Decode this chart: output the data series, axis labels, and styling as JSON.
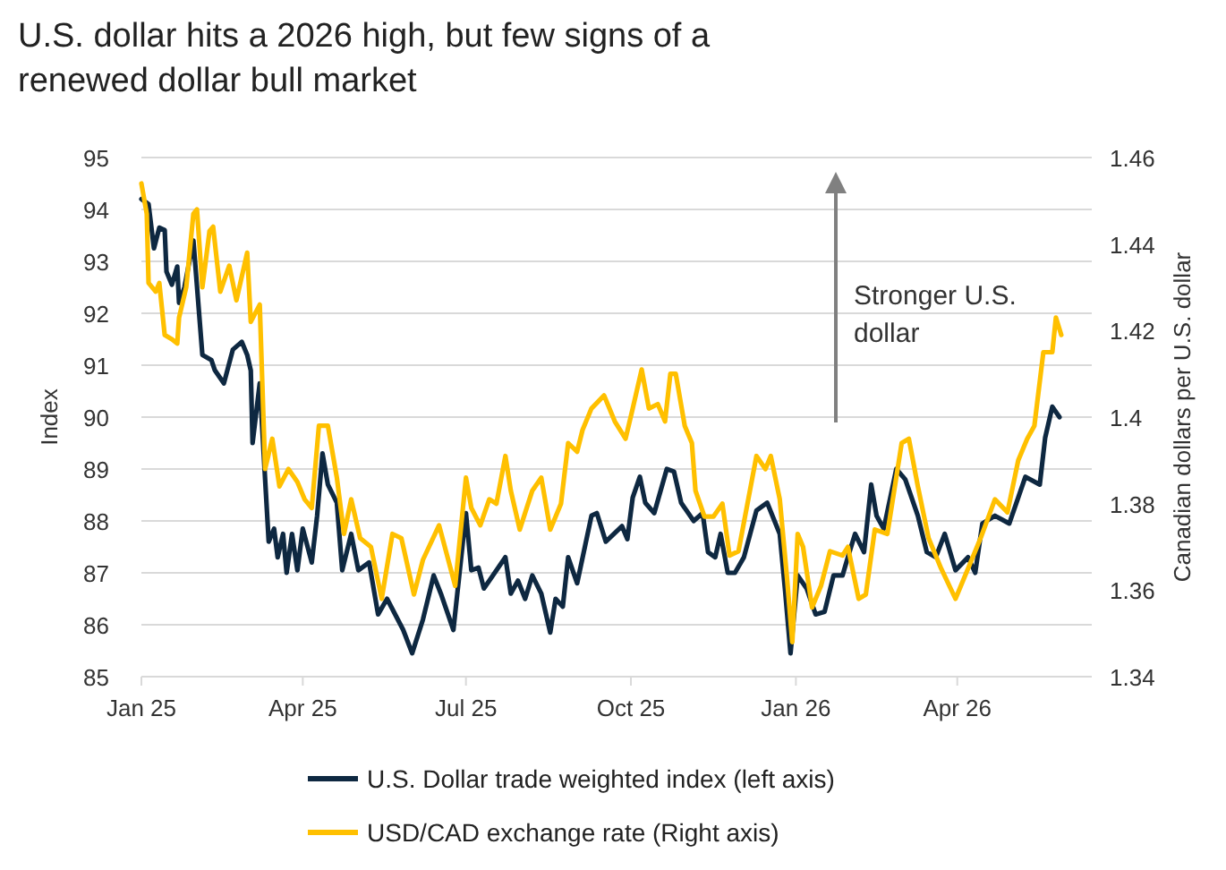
{
  "chart_data": {
    "type": "line",
    "title": "U.S. dollar hits a 2026 high, but few signs of a renewed dollar bull market",
    "ylabel": "Index",
    "y2label": "Canadian dollars per U.S. dollar",
    "annotations": [
      "Stronger U.S. dollar"
    ],
    "grid": "y",
    "legend": "bottom",
    "xlim": [
      "2025-01-01",
      "2026-06-15"
    ],
    "xticks": [
      {
        "value": "2025-01-01",
        "label": "Jan 25"
      },
      {
        "value": "2025-04-01",
        "label": "Apr 25"
      },
      {
        "value": "2025-07-01",
        "label": "Jul 25"
      },
      {
        "value": "2025-10-01",
        "label": "Oct 25"
      },
      {
        "value": "2026-01-01",
        "label": "Jan 26"
      },
      {
        "value": "2026-04-01",
        "label": "Apr 26"
      }
    ],
    "ylim": [
      85,
      95
    ],
    "yticks": [
      85,
      86,
      87,
      88,
      89,
      90,
      91,
      92,
      93,
      94,
      95
    ],
    "y2lim": [
      1.34,
      1.46
    ],
    "y2ticks": [
      1.34,
      1.36,
      1.38,
      1.4,
      1.42,
      1.44,
      1.46
    ],
    "series": [
      {
        "name": "U.S. Dollar trade weighted index (left axis)",
        "color": "#0e2841",
        "x": [
          "2025-01-01",
          "2025-01-05",
          "2025-01-08",
          "2025-01-11",
          "2025-01-14",
          "2025-01-15",
          "2025-01-18",
          "2025-01-21",
          "2025-01-22",
          "2025-01-25",
          "2025-01-30",
          "2025-02-04",
          "2025-02-09",
          "2025-02-11",
          "2025-02-16",
          "2025-02-21",
          "2025-02-26",
          "2025-03-01",
          "2025-03-03",
          "2025-03-04",
          "2025-03-08",
          "2025-03-11",
          "2025-03-13",
          "2025-03-16",
          "2025-03-18",
          "2025-03-21",
          "2025-03-23",
          "2025-03-26",
          "2025-03-29",
          "2025-04-01",
          "2025-04-06",
          "2025-04-09",
          "2025-04-12",
          "2025-04-15",
          "2025-04-20",
          "2025-04-23",
          "2025-04-28",
          "2025-05-02",
          "2025-05-08",
          "2025-05-13",
          "2025-05-18",
          "2025-05-27",
          "2025-06-01",
          "2025-06-07",
          "2025-06-13",
          "2025-06-17",
          "2025-06-24",
          "2025-07-01",
          "2025-07-04",
          "2025-07-08",
          "2025-07-11",
          "2025-07-16",
          "2025-07-23",
          "2025-07-26",
          "2025-07-30",
          "2025-08-03",
          "2025-08-07",
          "2025-08-12",
          "2025-08-17",
          "2025-08-20",
          "2025-08-24",
          "2025-08-27",
          "2025-09-01",
          "2025-09-09",
          "2025-09-12",
          "2025-09-17",
          "2025-09-26",
          "2025-09-29",
          "2025-10-02",
          "2025-10-06",
          "2025-10-09",
          "2025-10-14",
          "2025-10-21",
          "2025-10-25",
          "2025-10-29",
          "2025-11-05",
          "2025-11-10",
          "2025-11-13",
          "2025-11-17",
          "2025-11-20",
          "2025-11-24",
          "2025-11-28",
          "2025-12-03",
          "2025-12-10",
          "2025-12-16",
          "2025-12-23",
          "2025-12-26",
          "2025-12-29",
          "2026-01-02",
          "2026-01-07",
          "2026-01-12",
          "2026-01-17",
          "2026-01-22",
          "2026-01-27",
          "2026-01-30",
          "2026-02-03",
          "2026-02-08",
          "2026-02-12",
          "2026-02-15",
          "2026-02-19",
          "2026-02-26",
          "2026-03-03",
          "2026-03-10",
          "2026-03-15",
          "2026-03-20",
          "2026-03-25",
          "2026-03-31",
          "2026-04-07",
          "2026-04-11",
          "2026-04-15",
          "2026-04-22",
          "2026-04-30",
          "2026-05-09",
          "2026-05-17",
          "2026-05-20",
          "2026-05-24",
          "2026-05-28"
        ],
        "values": [
          94.2,
          94.1,
          93.25,
          93.65,
          93.6,
          92.8,
          92.55,
          92.9,
          92.2,
          92.5,
          93.4,
          91.2,
          91.1,
          90.9,
          90.65,
          91.3,
          91.45,
          91.2,
          90.9,
          89.5,
          90.65,
          88.8,
          87.6,
          87.85,
          87.3,
          87.75,
          87.0,
          87.75,
          87.05,
          87.85,
          87.2,
          88.1,
          89.3,
          88.7,
          88.35,
          87.05,
          87.75,
          87.05,
          87.2,
          86.2,
          86.5,
          85.9,
          85.45,
          86.1,
          86.95,
          86.6,
          85.9,
          88.15,
          87.05,
          87.1,
          86.7,
          86.95,
          87.3,
          86.6,
          86.85,
          86.5,
          86.95,
          86.6,
          85.85,
          86.5,
          86.35,
          87.3,
          86.8,
          88.1,
          88.15,
          87.6,
          87.9,
          87.65,
          88.45,
          88.85,
          88.35,
          88.15,
          89.0,
          88.95,
          88.35,
          88.0,
          88.15,
          87.4,
          87.3,
          87.75,
          87.0,
          87.0,
          87.3,
          88.2,
          88.35,
          87.75,
          86.65,
          85.45,
          86.95,
          86.7,
          86.2,
          86.25,
          86.95,
          86.95,
          87.3,
          87.75,
          87.4,
          88.7,
          88.1,
          87.85,
          89.0,
          88.8,
          88.1,
          87.4,
          87.3,
          87.75,
          87.05,
          87.3,
          87.0,
          87.95,
          88.1,
          87.95,
          88.85,
          88.7,
          89.6,
          90.2,
          90.0
        ]
      },
      {
        "name": "USD/CAD exchange rate (Right axis)",
        "color": "#ffc000",
        "axis": "y2",
        "x": [
          "2025-01-01",
          "2025-01-04",
          "2025-01-05",
          "2025-01-09",
          "2025-01-11",
          "2025-01-14",
          "2025-01-18",
          "2025-01-21",
          "2025-01-22",
          "2025-01-26",
          "2025-01-30",
          "2025-02-01",
          "2025-02-04",
          "2025-02-08",
          "2025-02-10",
          "2025-02-14",
          "2025-02-19",
          "2025-02-23",
          "2025-03-01",
          "2025-03-03",
          "2025-03-08",
          "2025-03-11",
          "2025-03-15",
          "2025-03-19",
          "2025-03-24",
          "2025-03-29",
          "2025-04-02",
          "2025-04-06",
          "2025-04-10",
          "2025-04-15",
          "2025-04-20",
          "2025-04-24",
          "2025-04-28",
          "2025-05-03",
          "2025-05-09",
          "2025-05-15",
          "2025-05-21",
          "2025-05-26",
          "2025-06-02",
          "2025-06-07",
          "2025-06-16",
          "2025-06-25",
          "2025-07-01",
          "2025-07-04",
          "2025-07-09",
          "2025-07-14",
          "2025-07-18",
          "2025-07-23",
          "2025-07-26",
          "2025-07-31",
          "2025-08-07",
          "2025-08-12",
          "2025-08-17",
          "2025-08-23",
          "2025-08-27",
          "2025-09-01",
          "2025-09-04",
          "2025-09-09",
          "2025-09-16",
          "2025-09-22",
          "2025-09-28",
          "2025-10-02",
          "2025-10-07",
          "2025-10-11",
          "2025-10-16",
          "2025-10-20",
          "2025-10-23",
          "2025-10-26",
          "2025-10-31",
          "2025-11-04",
          "2025-11-06",
          "2025-11-11",
          "2025-11-16",
          "2025-11-21",
          "2025-11-25",
          "2025-11-30",
          "2025-12-10",
          "2025-12-15",
          "2025-12-18",
          "2025-12-23",
          "2025-12-27",
          "2025-12-30",
          "2026-01-02",
          "2026-01-05",
          "2026-01-10",
          "2026-01-15",
          "2026-01-20",
          "2026-01-27",
          "2026-01-30",
          "2026-02-05",
          "2026-02-09",
          "2026-02-14",
          "2026-02-21",
          "2026-03-01",
          "2026-03-05",
          "2026-03-10",
          "2026-03-16",
          "2026-03-23",
          "2026-03-31",
          "2026-04-07",
          "2026-04-14",
          "2026-04-22",
          "2026-04-29",
          "2026-05-05",
          "2026-05-10",
          "2026-05-14",
          "2026-05-19",
          "2026-05-24",
          "2026-05-26",
          "2026-05-29"
        ],
        "values": [
          1.454,
          1.447,
          1.431,
          1.429,
          1.431,
          1.419,
          1.418,
          1.417,
          1.423,
          1.43,
          1.447,
          1.448,
          1.43,
          1.443,
          1.444,
          1.429,
          1.435,
          1.427,
          1.438,
          1.422,
          1.426,
          1.388,
          1.395,
          1.384,
          1.388,
          1.385,
          1.381,
          1.379,
          1.398,
          1.398,
          1.386,
          1.373,
          1.381,
          1.372,
          1.37,
          1.358,
          1.373,
          1.372,
          1.359,
          1.367,
          1.375,
          1.361,
          1.386,
          1.379,
          1.375,
          1.381,
          1.38,
          1.391,
          1.383,
          1.374,
          1.383,
          1.386,
          1.374,
          1.38,
          1.394,
          1.392,
          1.397,
          1.402,
          1.405,
          1.399,
          1.395,
          1.402,
          1.411,
          1.402,
          1.403,
          1.399,
          1.41,
          1.41,
          1.398,
          1.394,
          1.383,
          1.377,
          1.377,
          1.38,
          1.368,
          1.369,
          1.391,
          1.388,
          1.391,
          1.381,
          1.363,
          1.348,
          1.373,
          1.37,
          1.356,
          1.361,
          1.369,
          1.368,
          1.37,
          1.358,
          1.359,
          1.374,
          1.373,
          1.394,
          1.395,
          1.384,
          1.372,
          1.365,
          1.358,
          1.365,
          1.372,
          1.381,
          1.378,
          1.39,
          1.395,
          1.398,
          1.415,
          1.415,
          1.423,
          1.419
        ]
      }
    ]
  }
}
